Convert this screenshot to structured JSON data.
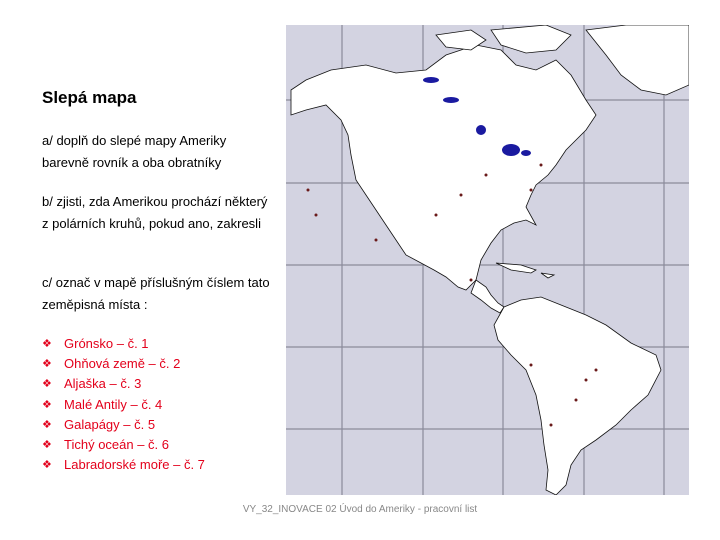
{
  "slide": {
    "title": "Slepá mapa",
    "task_a": "a/ doplň do slepé mapy Ameriky barevně rovník a oba obratníky",
    "task_b": "b/ zjisti, zda Amerikou prochází některý z polárních kruhů, pokud ano, zakresli",
    "task_c": "c/ označ v mapě příslušným číslem tato zeměpisná místa :",
    "places": [
      "Grónsko – č. 1",
      "Ohňová země – č. 2",
      "Aljaška – č. 3",
      "Malé Antily – č. 4",
      "Galapágy – č. 5",
      "Tichý oceán – č. 6",
      "Labradorské moře – č. 7"
    ],
    "bullet_icon": "diamond-cluster-bullet",
    "footer": "VY_32_INOVACE 02  Úvod do Ameriky - pracovní list"
  },
  "colors": {
    "list_text": "#e3001b",
    "ocean": "#d3d3e1",
    "land": "#ffffff",
    "lakes": "#1a1aa0"
  }
}
